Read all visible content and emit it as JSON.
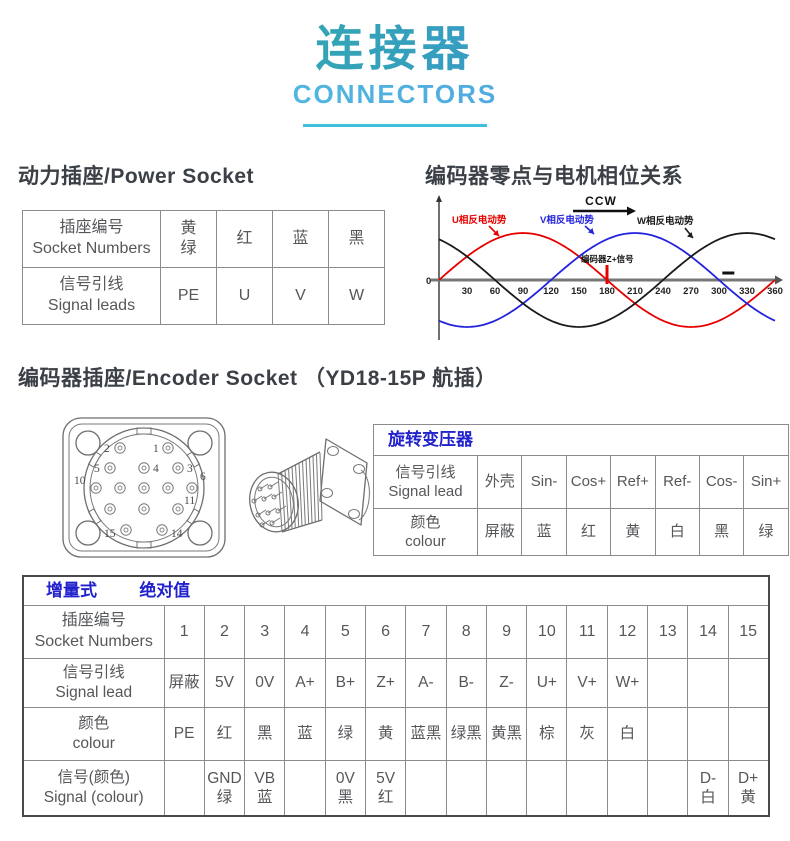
{
  "header": {
    "title_cn": "连接器",
    "title_en": "CONNECTORS"
  },
  "power_socket": {
    "heading": "动力插座/Power Socket",
    "rows": [
      {
        "label_cn": "插座编号",
        "label_en": "Socket Numbers",
        "cells": [
          "黄\n绿",
          "红",
          "蓝",
          "黑"
        ]
      },
      {
        "label_cn": "信号引线",
        "label_en": "Signal leads",
        "cells": [
          "PE",
          "U",
          "V",
          "W"
        ]
      }
    ]
  },
  "phase_section": {
    "heading": "编码器零点与电机相位关系"
  },
  "chart_data": {
    "type": "line",
    "title": "编码器零点与电机相位关系",
    "x_range": [
      0,
      360
    ],
    "x_ticks": [
      30,
      60,
      90,
      120,
      150,
      180,
      210,
      240,
      270,
      300,
      330,
      360
    ],
    "origin_label": "0",
    "direction_label": "CCW",
    "ylim": [
      -1,
      1
    ],
    "grid": false,
    "legend_position": "inline-labels",
    "series": [
      {
        "name": "U相反电动势",
        "color": "#e60000",
        "phase_deg": 0,
        "formula": "sin(x)"
      },
      {
        "name": "V相反电动势",
        "color": "#2323dd",
        "phase_deg": -120,
        "formula": "sin(x-120)"
      },
      {
        "name": "W相反电动势",
        "color": "#1a1a1a",
        "phase_deg": 120,
        "formula": "sin(x+120)"
      }
    ],
    "z_marker": {
      "label": "编码器Z+信号",
      "x": 180,
      "color": "#e60000"
    },
    "dash_marker_x": 310
  },
  "encoder_section": {
    "heading_main": "编码器插座/Encoder Socket",
    "heading_sub": "（YD18-15P 航插）",
    "front_view_pin_labels": [
      "1",
      "2",
      "3",
      "4",
      "5",
      "6",
      "10",
      "11",
      "14",
      "15"
    ]
  },
  "rotary_table": {
    "title": "旋转变压器",
    "rows": [
      {
        "label_cn": "信号引线",
        "label_en": "Signal lead",
        "cells": [
          "外壳",
          "Sin-",
          "Cos+",
          "Ref+",
          "Ref-",
          "Cos-",
          "Sin+"
        ]
      },
      {
        "label_cn": "颜色",
        "label_en": "colour",
        "cells": [
          "屏蔽",
          "蓝",
          "红",
          "黄",
          "白",
          "黑",
          "绿"
        ]
      }
    ]
  },
  "encoder_table": {
    "header_labels": [
      "增量式",
      "绝对值"
    ],
    "rows": [
      {
        "label_cn": "插座编号",
        "label_en": "Socket Numbers",
        "cells": [
          "1",
          "2",
          "3",
          "4",
          "5",
          "6",
          "7",
          "8",
          "9",
          "10",
          "11",
          "12",
          "13",
          "14",
          "15"
        ]
      },
      {
        "label_cn": "信号引线",
        "label_en": "Signal lead",
        "cells": [
          "屏蔽",
          "5V",
          "0V",
          "A+",
          "B+",
          "Z+",
          "A-",
          "B-",
          "Z-",
          "U+",
          "V+",
          "W+",
          "",
          "",
          ""
        ]
      },
      {
        "label_cn": "颜色",
        "label_en": "colour",
        "cells": [
          "PE",
          "红",
          "黑",
          "蓝",
          "绿",
          "黄",
          "蓝黑",
          "绿黑",
          "黄黑",
          "棕",
          "灰",
          "白",
          "",
          "",
          ""
        ]
      },
      {
        "label_cn": "信号(颜色)",
        "label_en": "Signal (colour)",
        "cells": [
          "",
          "GND\n绿",
          "VB\n蓝",
          "",
          "0V\n黑",
          "5V\n红",
          "",
          "",
          "",
          "",
          "",
          "",
          "",
          "D-\n白",
          "D+\n黄"
        ]
      }
    ]
  },
  "colors": {
    "title_gradient_start": "#2bb39c",
    "title_gradient_end": "#3f8edb",
    "underline": "#41bedb",
    "accent_blue_text": "#2222cc",
    "wave_u": "#e60000",
    "wave_v": "#2323dd",
    "wave_w": "#1a1a1a"
  }
}
